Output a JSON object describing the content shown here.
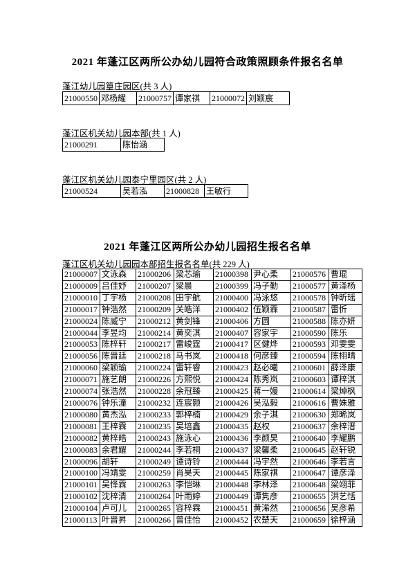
{
  "doc": {
    "title1": "2021 年蓬江区两所公办幼儿园符合政策照顾条件报名名单",
    "title2": "2021 年蓬江区两所公办幼儿园招生报名名单"
  },
  "policy_sections": [
    {
      "label": "蓬江幼儿园篁庄园区(共 3 人)",
      "rows": [
        [
          "21000550",
          "邓杨耀",
          "21000757",
          "谭家祺",
          "21000072",
          "刘颖宸"
        ]
      ]
    },
    {
      "label": "蓬江区机关幼儿园本部(共 1 人)",
      "rows": [
        [
          "21000291",
          "陈怡涵"
        ]
      ]
    },
    {
      "label": "蓬江区机关幼儿园泰宁里园区(共 2 人)",
      "rows": [
        [
          "21000524",
          "吴若泓",
          "21000828",
          "王敏行"
        ]
      ]
    }
  ],
  "enrollment": {
    "label": "蓬江区机关幼儿园园本部招生报名名单(共 229 人)",
    "rows": [
      [
        "21000007",
        "文泳森",
        "21000206",
        "梁芯瑜",
        "21000398",
        "尹心柔",
        "21000576",
        "曹琨"
      ],
      [
        "21000009",
        "吕佳妤",
        "21000207",
        "梁晨",
        "21000399",
        "冯子勤",
        "21000577",
        "黄泽杨"
      ],
      [
        "21000010",
        "丁宇杨",
        "21000208",
        "田宇航",
        "21000400",
        "冯泳悠",
        "21000578",
        "钟昕瑶"
      ],
      [
        "21000017",
        "钟浩然",
        "21000209",
        "关皓洋",
        "21000402",
        "伍颖霖",
        "21000587",
        "雷忻"
      ],
      [
        "21000024",
        "陈威宁",
        "21000212",
        "黄剑锋",
        "21000406",
        "方圆",
        "21000588",
        "陈亦妍"
      ],
      [
        "21000044",
        "李昱均",
        "21000214",
        "黄奕淇",
        "21000407",
        "容家宇",
        "21000590",
        "陈乐"
      ],
      [
        "21000053",
        "陈梓轩",
        "21000217",
        "雷峻霆",
        "21000417",
        "区健烨",
        "21000593",
        "邓雯雯"
      ],
      [
        "21000056",
        "陈晋廷",
        "21000218",
        "马书岚",
        "21000418",
        "何彦臻",
        "21000594",
        "陈栩晴"
      ],
      [
        "21000060",
        "梁颖瑜",
        "21000224",
        "雷轩睿",
        "21000423",
        "赵必曦",
        "21000601",
        "薛泽康"
      ],
      [
        "21000071",
        "施艺朗",
        "21000226",
        "方熙悦",
        "21000424",
        "陈秀岚",
        "21000603",
        "谭梓淇"
      ],
      [
        "21000074",
        "张浩然",
        "21000228",
        "余冠臻",
        "21000425",
        "蒋一嫚",
        "21000614",
        "梁焯枫"
      ],
      [
        "21000076",
        "钟乐潼",
        "21000232",
        "连宸颢",
        "21000426",
        "吴泓毅",
        "21000616",
        "曹姝雅"
      ],
      [
        "21000080",
        "黄杰泓",
        "21000233",
        "郭梓楠",
        "21000429",
        "余子淇",
        "21000630",
        "郑晞岚"
      ],
      [
        "21000081",
        "王梓霖",
        "21000235",
        "吴培鑫",
        "21000435",
        "赵权",
        "21000637",
        "余梓溍"
      ],
      [
        "21000082",
        "黄梓皓",
        "21000243",
        "施泳心",
        "21000436",
        "李颜昊",
        "21000640",
        "李耀鹏"
      ],
      [
        "21000083",
        "余君耀",
        "21000244",
        "李若桐",
        "21000437",
        "梁馨柔",
        "21000645",
        "赵轩锐"
      ],
      [
        "21000096",
        "胡轩",
        "21000249",
        "谭诗铃",
        "21000444",
        "冯宇然",
        "21000646",
        "李若言"
      ],
      [
        "21000100",
        "冯靖雯",
        "21000259",
        "肖昊天",
        "21000445",
        "陈家祺",
        "21000647",
        "谭彦泽"
      ],
      [
        "21000101",
        "吴怿霖",
        "21000263",
        "李恺琳",
        "21000448",
        "李林泽",
        "21000648",
        "梁翊菲"
      ],
      [
        "21000102",
        "沈梓清",
        "21000264",
        "叶雨婷",
        "21000449",
        "谭隽彦",
        "21000655",
        "洪艺恬"
      ],
      [
        "21000104",
        "卢可儿",
        "21000265",
        "容梓霖",
        "21000451",
        "黄浠然",
        "21000656",
        "吴彦希"
      ],
      [
        "21000113",
        "叶晋昇",
        "21000266",
        "曾佳怡",
        "21000452",
        "农楚天",
        "21000659",
        "徐梓涵"
      ]
    ]
  }
}
